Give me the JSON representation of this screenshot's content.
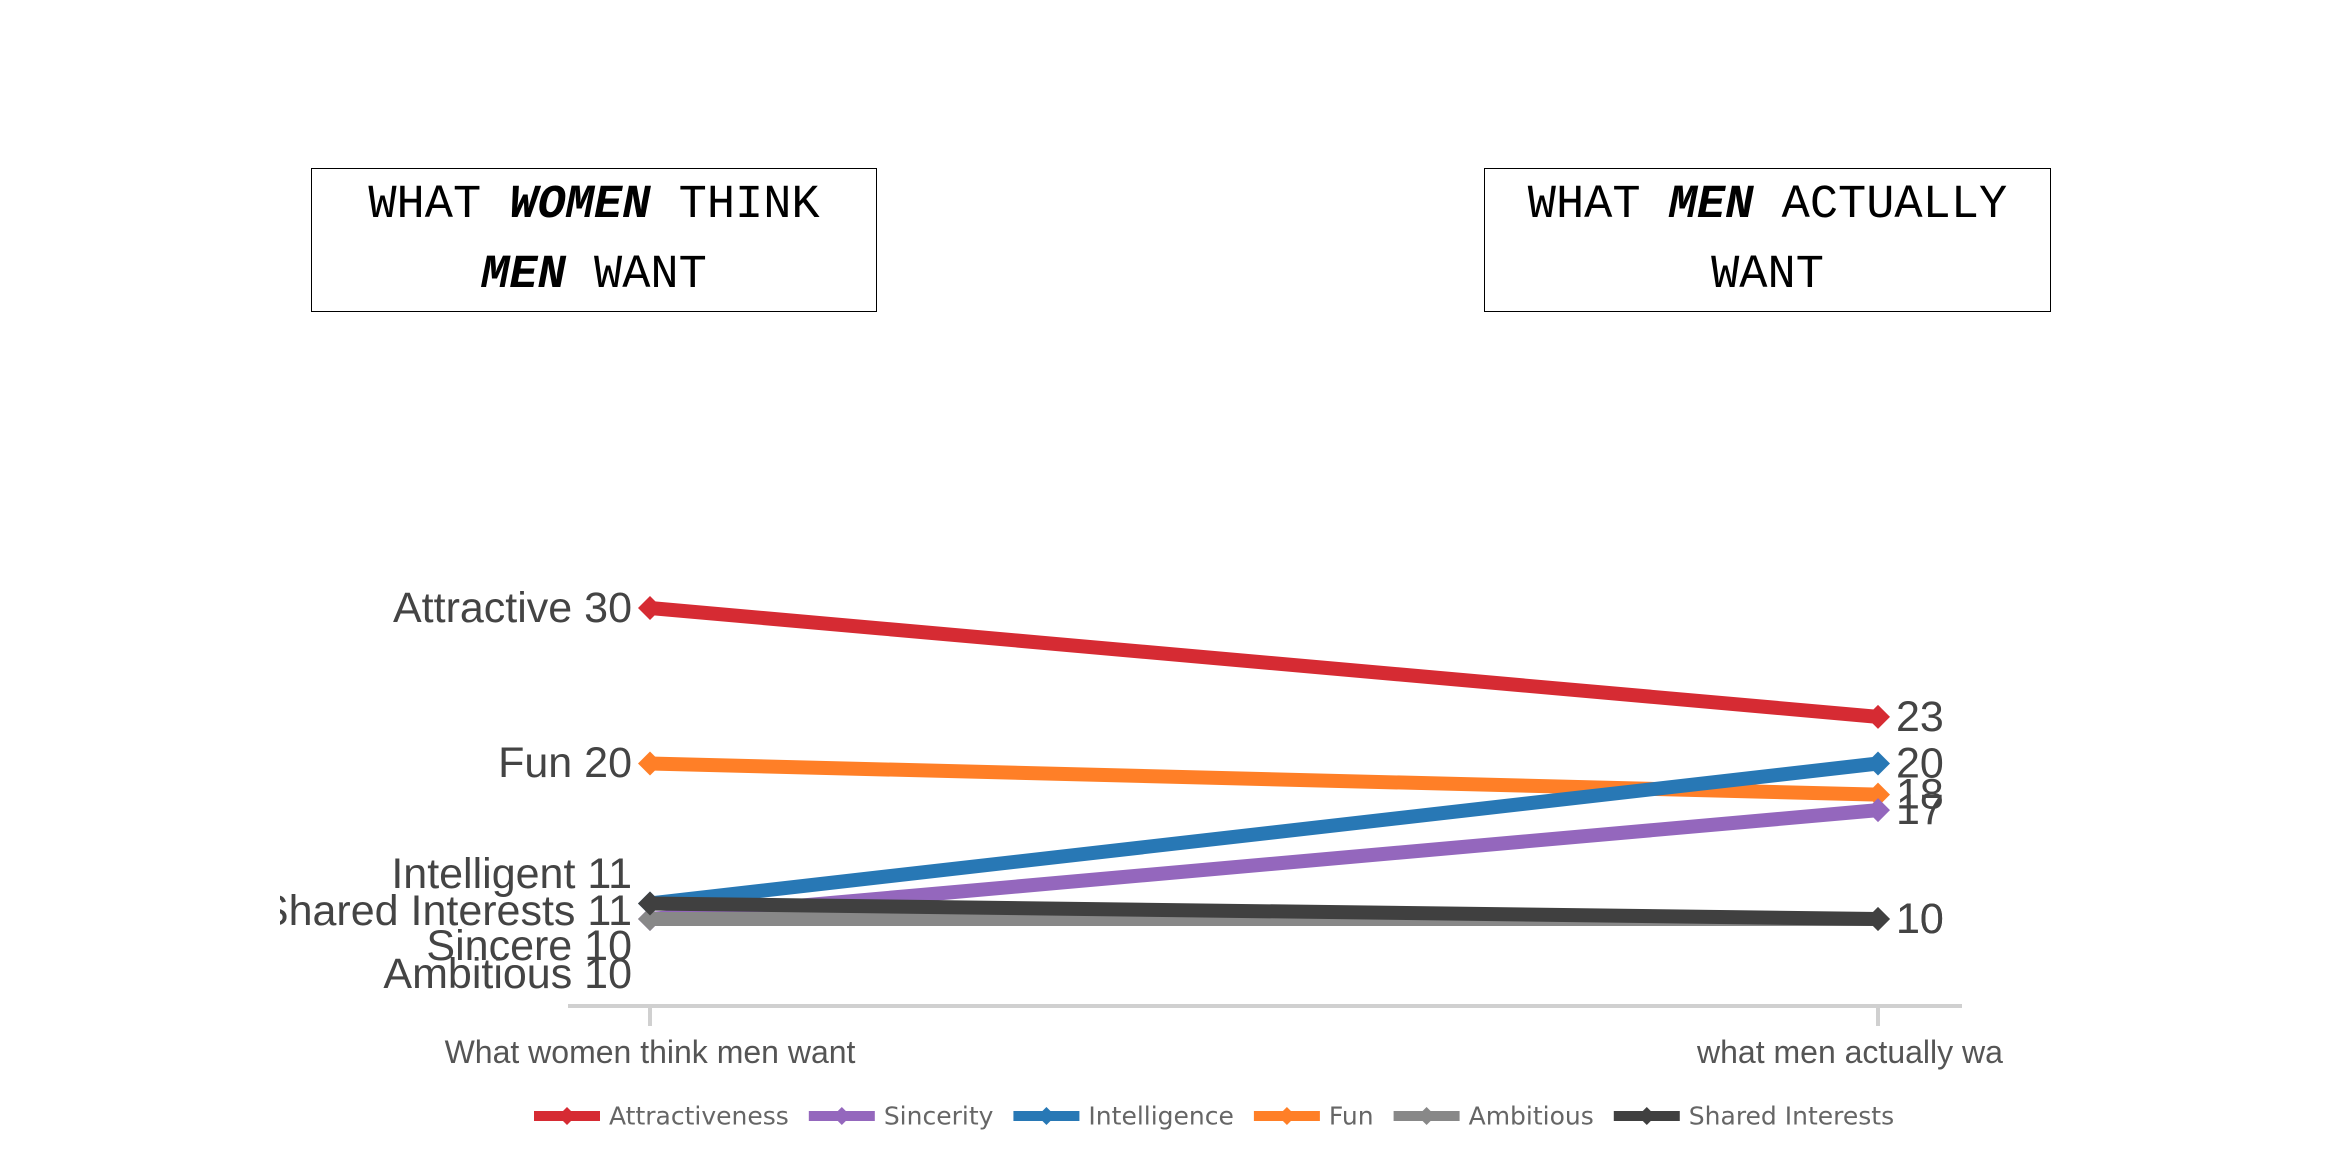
{
  "headings": {
    "left": {
      "part1": "WHAT ",
      "em1": "WOMEN",
      "part2": " THINK",
      "em2": "MEN",
      "part3": " WANT"
    },
    "right": {
      "part1": "WHAT ",
      "em1": "MEN",
      "part2": " ACTUALLY",
      "part3": "WANT"
    }
  },
  "chart_data": {
    "type": "line",
    "categories": [
      "What women think men want",
      "what men actually want"
    ],
    "category_labels_visible": [
      "What women think men want",
      "what men actually wa"
    ],
    "ylim": [
      6,
      32
    ],
    "grid": false,
    "legend_position": "bottom",
    "series": [
      {
        "name": "Attractiveness",
        "start_label": "Attractive",
        "values": [
          30,
          23
        ],
        "color": "#d62b33"
      },
      {
        "name": "Sincerity",
        "start_label": "Sincere",
        "values": [
          10,
          17
        ],
        "color": "#9467bd"
      },
      {
        "name": "Intelligence",
        "start_label": "Intelligent",
        "values": [
          11,
          20
        ],
        "color": "#2878b5"
      },
      {
        "name": "Fun",
        "start_label": "Fun",
        "values": [
          20,
          18
        ],
        "color": "#ff7f27"
      },
      {
        "name": "Ambitious",
        "start_label": "Ambitious",
        "values": [
          10,
          10
        ],
        "color": "#888888"
      },
      {
        "name": "Shared Interests",
        "start_label": "Shared Interests",
        "values": [
          11,
          10
        ],
        "color": "#404040"
      }
    ]
  }
}
